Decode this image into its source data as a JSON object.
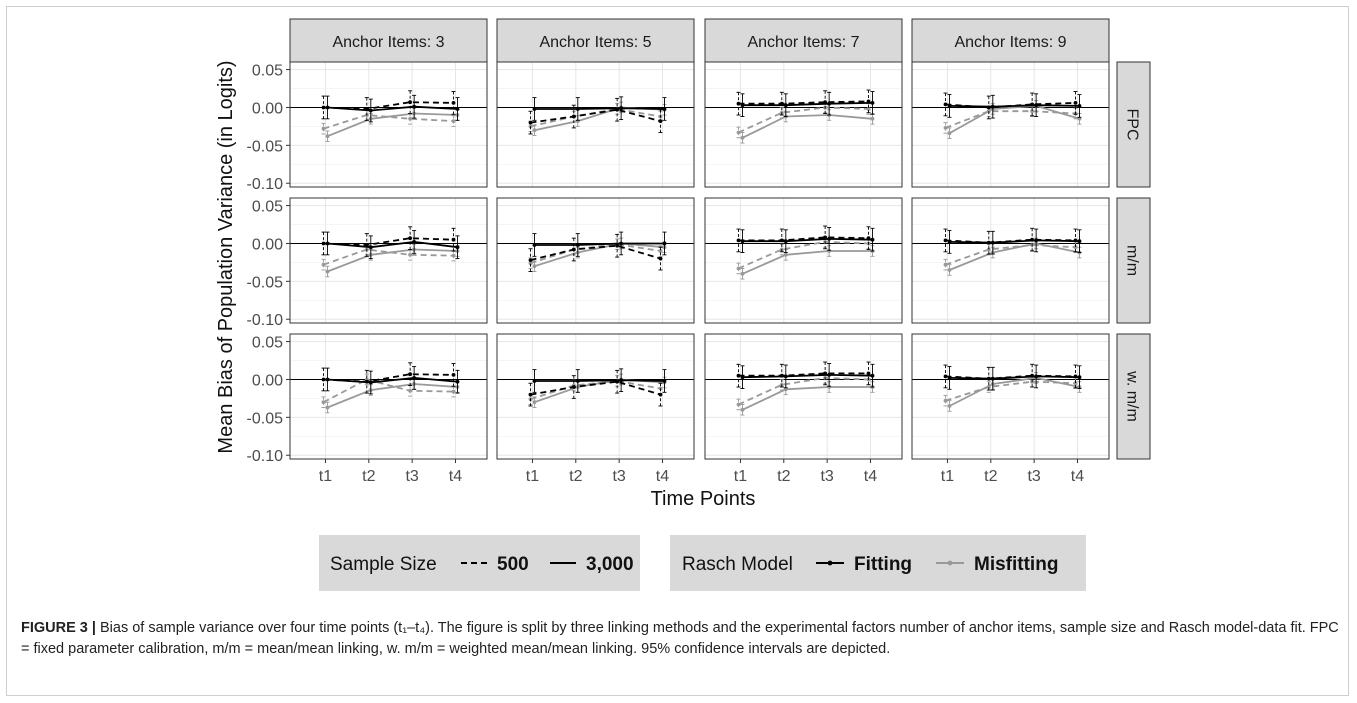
{
  "chart_data": {
    "type": "line",
    "ylabel": "Mean Bias of Population Variance (in Logits)",
    "xlabel": "Time Points",
    "x": [
      "t1",
      "t2",
      "t3",
      "t4"
    ],
    "ylim": [
      -0.105,
      0.06
    ],
    "yticks": [
      0.05,
      0.0,
      -0.05,
      -0.1
    ],
    "ytick_labels": [
      "0.05",
      "0.00",
      "-0.05",
      "-0.10"
    ],
    "col_facets": [
      "Anchor Items: 3",
      "Anchor Items: 5",
      "Anchor Items: 7",
      "Anchor Items: 9"
    ],
    "row_facets": [
      "FPC",
      "m/m",
      "w. m/m"
    ],
    "grid": true,
    "legend_position": "bottom",
    "legend": {
      "sample_size": {
        "title": "Sample Size",
        "items": [
          "500",
          "3,000"
        ]
      },
      "rasch_model": {
        "title": "Rasch Model",
        "items": [
          "Fitting",
          "Misfitting"
        ]
      }
    },
    "colors": {
      "Fitting": "#000000",
      "Misfitting": "#999999"
    },
    "panels": [
      {
        "row": "FPC",
        "col": "Anchor Items: 3",
        "series": [
          {
            "model": "Fitting",
            "n": "500",
            "values": [
              0.0,
              -0.002,
              0.007,
              0.006
            ]
          },
          {
            "model": "Fitting",
            "n": "3,000",
            "values": [
              0.0,
              -0.004,
              0.001,
              -0.002
            ]
          },
          {
            "model": "Misfitting",
            "n": "500",
            "values": [
              -0.028,
              -0.01,
              -0.015,
              -0.018
            ]
          },
          {
            "model": "Misfitting",
            "n": "3,000",
            "values": [
              -0.038,
              -0.015,
              -0.008,
              -0.01
            ]
          }
        ]
      },
      {
        "row": "FPC",
        "col": "Anchor Items: 5",
        "series": [
          {
            "model": "Fitting",
            "n": "500",
            "values": [
              -0.02,
              -0.012,
              -0.003,
              -0.018
            ]
          },
          {
            "model": "Fitting",
            "n": "3,000",
            "values": [
              -0.002,
              -0.002,
              -0.001,
              -0.002
            ]
          },
          {
            "model": "Misfitting",
            "n": "500",
            "values": [
              -0.025,
              -0.012,
              -0.002,
              -0.012
            ]
          },
          {
            "model": "Misfitting",
            "n": "3,000",
            "values": [
              -0.03,
              -0.018,
              0.0,
              -0.003
            ]
          }
        ]
      },
      {
        "row": "FPC",
        "col": "Anchor Items: 7",
        "series": [
          {
            "model": "Fitting",
            "n": "500",
            "values": [
              0.005,
              0.005,
              0.007,
              0.008
            ]
          },
          {
            "model": "Fitting",
            "n": "3,000",
            "values": [
              0.003,
              0.003,
              0.005,
              0.006
            ]
          },
          {
            "model": "Misfitting",
            "n": "500",
            "values": [
              -0.033,
              -0.007,
              0.0,
              -0.002
            ]
          },
          {
            "model": "Misfitting",
            "n": "3,000",
            "values": [
              -0.04,
              -0.012,
              -0.01,
              -0.015
            ]
          }
        ]
      },
      {
        "row": "FPC",
        "col": "Anchor Items: 9",
        "series": [
          {
            "model": "Fitting",
            "n": "500",
            "values": [
              0.004,
              0.0,
              0.004,
              0.006
            ]
          },
          {
            "model": "Fitting",
            "n": "3,000",
            "values": [
              0.002,
              0.001,
              0.003,
              0.002
            ]
          },
          {
            "model": "Misfitting",
            "n": "500",
            "values": [
              -0.027,
              -0.005,
              -0.005,
              -0.008
            ]
          },
          {
            "model": "Misfitting",
            "n": "3,000",
            "values": [
              -0.034,
              -0.002,
              0.002,
              -0.015
            ]
          }
        ]
      },
      {
        "row": "m/m",
        "col": "Anchor Items: 3",
        "series": [
          {
            "model": "Fitting",
            "n": "500",
            "values": [
              0.0,
              -0.002,
              0.007,
              0.005
            ]
          },
          {
            "model": "Fitting",
            "n": "3,000",
            "values": [
              0.0,
              -0.005,
              0.002,
              -0.005
            ]
          },
          {
            "model": "Misfitting",
            "n": "500",
            "values": [
              -0.028,
              -0.008,
              -0.015,
              -0.016
            ]
          },
          {
            "model": "Misfitting",
            "n": "3,000",
            "values": [
              -0.037,
              -0.015,
              -0.008,
              -0.01
            ]
          }
        ]
      },
      {
        "row": "m/m",
        "col": "Anchor Items: 5",
        "series": [
          {
            "model": "Fitting",
            "n": "500",
            "values": [
              -0.022,
              -0.008,
              -0.003,
              -0.02
            ]
          },
          {
            "model": "Fitting",
            "n": "3,000",
            "values": [
              -0.002,
              -0.002,
              0.0,
              0.0
            ]
          },
          {
            "model": "Misfitting",
            "n": "500",
            "values": [
              -0.026,
              -0.008,
              -0.001,
              -0.01
            ]
          },
          {
            "model": "Misfitting",
            "n": "3,000",
            "values": [
              -0.03,
              -0.012,
              0.0,
              -0.005
            ]
          }
        ]
      },
      {
        "row": "m/m",
        "col": "Anchor Items: 7",
        "series": [
          {
            "model": "Fitting",
            "n": "500",
            "values": [
              0.004,
              0.004,
              0.008,
              0.007
            ]
          },
          {
            "model": "Fitting",
            "n": "3,000",
            "values": [
              0.003,
              0.003,
              0.006,
              0.005
            ]
          },
          {
            "model": "Misfitting",
            "n": "500",
            "values": [
              -0.033,
              -0.008,
              0.002,
              0.0
            ]
          },
          {
            "model": "Misfitting",
            "n": "3,000",
            "values": [
              -0.04,
              -0.015,
              -0.01,
              -0.01
            ]
          }
        ]
      },
      {
        "row": "m/m",
        "col": "Anchor Items: 9",
        "series": [
          {
            "model": "Fitting",
            "n": "500",
            "values": [
              0.004,
              0.001,
              0.005,
              0.004
            ]
          },
          {
            "model": "Fitting",
            "n": "3,000",
            "values": [
              0.002,
              0.001,
              0.004,
              0.003
            ]
          },
          {
            "model": "Misfitting",
            "n": "500",
            "values": [
              -0.028,
              -0.008,
              -0.002,
              -0.005
            ]
          },
          {
            "model": "Misfitting",
            "n": "3,000",
            "values": [
              -0.035,
              -0.012,
              0.0,
              -0.012
            ]
          }
        ]
      },
      {
        "row": "w. m/m",
        "col": "Anchor Items: 3",
        "series": [
          {
            "model": "Fitting",
            "n": "500",
            "values": [
              0.0,
              -0.003,
              0.007,
              0.006
            ]
          },
          {
            "model": "Fitting",
            "n": "3,000",
            "values": [
              0.0,
              -0.004,
              0.002,
              -0.003
            ]
          },
          {
            "model": "Misfitting",
            "n": "500",
            "values": [
              -0.03,
              0.0,
              -0.015,
              -0.016
            ]
          },
          {
            "model": "Misfitting",
            "n": "3,000",
            "values": [
              -0.037,
              -0.014,
              -0.006,
              -0.01
            ]
          }
        ]
      },
      {
        "row": "w. m/m",
        "col": "Anchor Items: 5",
        "series": [
          {
            "model": "Fitting",
            "n": "500",
            "values": [
              -0.02,
              -0.01,
              -0.003,
              -0.02
            ]
          },
          {
            "model": "Fitting",
            "n": "3,000",
            "values": [
              -0.002,
              -0.002,
              -0.001,
              -0.002
            ]
          },
          {
            "model": "Misfitting",
            "n": "500",
            "values": [
              -0.026,
              -0.008,
              -0.002,
              -0.012
            ]
          },
          {
            "model": "Misfitting",
            "n": "3,000",
            "values": [
              -0.03,
              -0.01,
              0.0,
              -0.004
            ]
          }
        ]
      },
      {
        "row": "w. m/m",
        "col": "Anchor Items: 7",
        "series": [
          {
            "model": "Fitting",
            "n": "500",
            "values": [
              0.005,
              0.005,
              0.008,
              0.008
            ]
          },
          {
            "model": "Fitting",
            "n": "3,000",
            "values": [
              0.003,
              0.004,
              0.006,
              0.005
            ]
          },
          {
            "model": "Misfitting",
            "n": "500",
            "values": [
              -0.033,
              -0.007,
              0.002,
              0.0
            ]
          },
          {
            "model": "Misfitting",
            "n": "3,000",
            "values": [
              -0.04,
              -0.013,
              -0.01,
              -0.01
            ]
          }
        ]
      },
      {
        "row": "w. m/m",
        "col": "Anchor Items: 9",
        "series": [
          {
            "model": "Fitting",
            "n": "500",
            "values": [
              0.004,
              0.001,
              0.005,
              0.004
            ]
          },
          {
            "model": "Fitting",
            "n": "3,000",
            "values": [
              0.002,
              0.001,
              0.004,
              0.003
            ]
          },
          {
            "model": "Misfitting",
            "n": "500",
            "values": [
              -0.028,
              -0.01,
              -0.003,
              -0.005
            ]
          },
          {
            "model": "Misfitting",
            "n": "3,000",
            "values": [
              -0.035,
              -0.006,
              0.002,
              -0.01
            ]
          }
        ]
      }
    ]
  },
  "caption": {
    "label": "FIGURE 3 |",
    "text": " Bias of sample variance over four time points (t₁–t₄). The figure is split by three linking methods and the experimental factors number of anchor items, sample size and Rasch model-data fit. FPC = fixed parameter calibration, m/m = mean/mean linking, w. m/m =  weighted mean/mean linking. 95% confidence intervals are depicted."
  }
}
